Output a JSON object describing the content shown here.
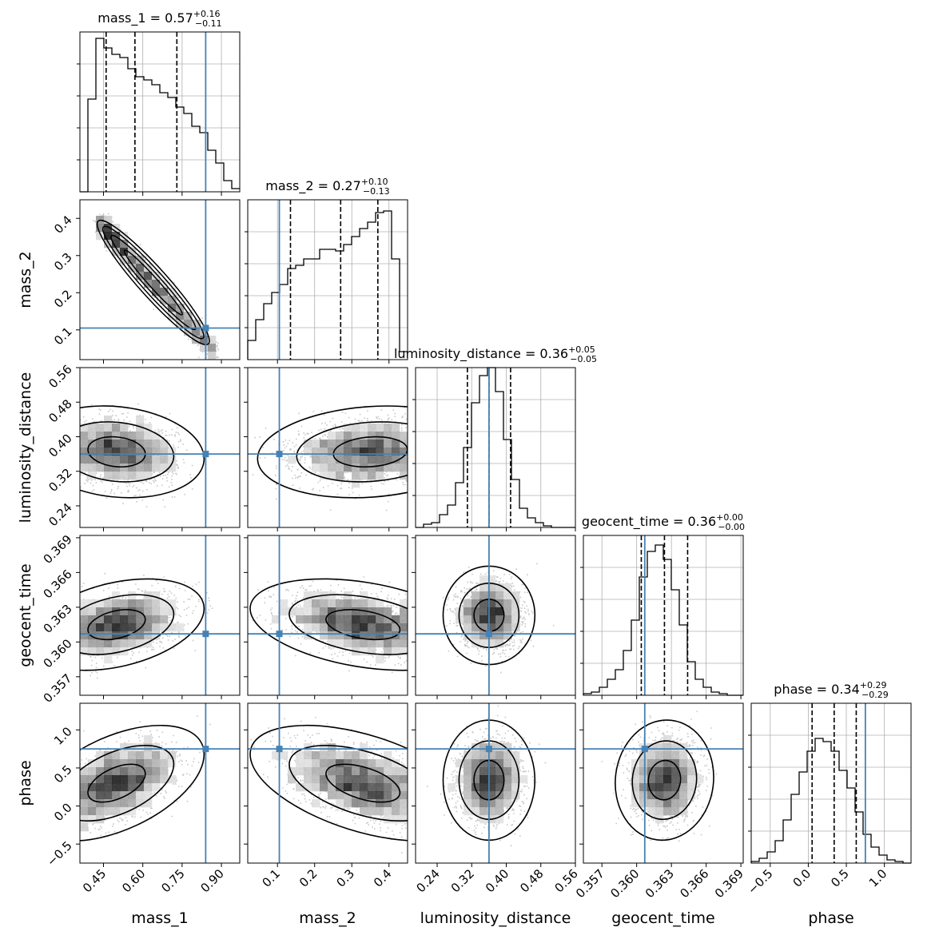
{
  "chart_data": {
    "type": "corner",
    "parameters": [
      {
        "name": "mass_1",
        "label": "mass_1",
        "range": [
          0.36,
          0.97
        ],
        "ticks": [
          0.45,
          0.6,
          0.75,
          0.9
        ],
        "tick_labels": [
          "0.45",
          "0.60",
          "0.75",
          "0.90"
        ],
        "truth": 0.84,
        "title": {
          "text": "mass_1 = 0.57",
          "plus": "+0.16",
          "minus": "−0.11"
        },
        "quantiles": [
          0.46,
          0.57,
          0.73
        ],
        "hist": {
          "bin_start": 0.36,
          "bin_width": 0.0305,
          "heights": [
            0,
            0.58,
            0.96,
            0.9,
            0.86,
            0.84,
            0.77,
            0.72,
            0.7,
            0.67,
            0.62,
            0.59,
            0.53,
            0.49,
            0.41,
            0.37,
            0.26,
            0.18,
            0.07,
            0.02
          ]
        }
      },
      {
        "name": "mass_2",
        "label": "mass_2",
        "range": [
          0.02,
          0.45
        ],
        "ticks": [
          0.1,
          0.2,
          0.3,
          0.4
        ],
        "tick_labels": [
          "0.1",
          "0.2",
          "0.3",
          "0.4"
        ],
        "truth": 0.105,
        "title": {
          "text": "mass_2 = 0.27",
          "plus": "+0.10",
          "minus": "−0.13"
        },
        "quantiles": [
          0.135,
          0.27,
          0.37
        ],
        "hist": {
          "bin_start": 0.02,
          "bin_width": 0.0215,
          "heights": [
            0.12,
            0.25,
            0.35,
            0.42,
            0.47,
            0.57,
            0.59,
            0.63,
            0.63,
            0.69,
            0.69,
            0.68,
            0.72,
            0.77,
            0.82,
            0.86,
            0.92,
            0.93,
            0.63,
            0.05
          ]
        }
      },
      {
        "name": "luminosity_distance",
        "label": "luminosity_distance",
        "range": [
          0.19,
          0.56
        ],
        "ticks": [
          0.24,
          0.32,
          0.4,
          0.48,
          0.56
        ],
        "tick_labels": [
          "0.24",
          "0.32",
          "0.40",
          "0.48",
          "0.56"
        ],
        "truth": 0.36,
        "title": {
          "text": "luminosity_distance = 0.36",
          "plus": "+0.05",
          "minus": "−0.05"
        },
        "quantiles": [
          0.31,
          0.36,
          0.41
        ],
        "hist": {
          "bin_start": 0.19,
          "bin_width": 0.0185,
          "heights": [
            0,
            0.02,
            0.03,
            0.08,
            0.14,
            0.28,
            0.5,
            0.78,
            0.95,
            1.0,
            0.85,
            0.55,
            0.3,
            0.12,
            0.06,
            0.03,
            0.01,
            0,
            0,
            0
          ]
        }
      },
      {
        "name": "geocent_time",
        "label": "geocent_time",
        "range": [
          0.3554,
          0.3692
        ],
        "ticks": [
          0.357,
          0.36,
          0.363,
          0.366,
          0.369
        ],
        "tick_labels": [
          "0.357",
          "0.360",
          "0.363",
          "0.366",
          "0.369"
        ],
        "truth": 0.3607,
        "title": {
          "text": "geocent_time = 0.36",
          "plus": "+0.00",
          "minus": "−0.00"
        },
        "quantiles": [
          0.3604,
          0.3624,
          0.3644
        ],
        "hist": {
          "bin_start": 0.3554,
          "bin_width": 0.00069,
          "heights": [
            0.01,
            0.02,
            0.05,
            0.1,
            0.16,
            0.28,
            0.47,
            0.74,
            0.9,
            0.94,
            0.85,
            0.66,
            0.44,
            0.21,
            0.1,
            0.05,
            0.02,
            0.01,
            0,
            0
          ]
        }
      },
      {
        "name": "phase",
        "label": "phase",
        "range": [
          -0.75,
          1.35
        ],
        "ticks": [
          -0.5,
          0.0,
          0.5,
          1.0
        ],
        "tick_labels": [
          "−0.5",
          "0.0",
          "0.5",
          "1.0"
        ],
        "truth": 0.75,
        "title": {
          "text": "phase = 0.34",
          "plus": "+0.29",
          "minus": "−0.29"
        },
        "quantiles": [
          0.05,
          0.34,
          0.63
        ],
        "hist": {
          "bin_start": -0.75,
          "bin_width": 0.105,
          "heights": [
            0.01,
            0.03,
            0.07,
            0.14,
            0.27,
            0.43,
            0.57,
            0.7,
            0.78,
            0.76,
            0.7,
            0.58,
            0.47,
            0.32,
            0.18,
            0.1,
            0.05,
            0.02,
            0.01,
            0
          ]
        }
      }
    ],
    "pairs": [
      {
        "x": "mass_1",
        "y": "mass_2",
        "center": [
          0.44,
          0.385
        ],
        "trend": "linear-negative",
        "end": [
          0.87,
          0.04
        ],
        "width": 0.012
      },
      {
        "x": "mass_1",
        "y": "luminosity_distance",
        "center": [
          0.5,
          0.365
        ],
        "sx": 0.11,
        "sy": 0.035,
        "rho": -0.15
      },
      {
        "x": "mass_1",
        "y": "geocent_time",
        "center": [
          0.5,
          0.3615
        ],
        "sx": 0.11,
        "sy": 0.0013,
        "rho": 0.35
      },
      {
        "x": "mass_1",
        "y": "phase",
        "center": [
          0.5,
          0.3
        ],
        "sx": 0.11,
        "sy": 0.25,
        "rho": 0.5
      },
      {
        "x": "mass_2",
        "y": "luminosity_distance",
        "center": [
          0.35,
          0.365
        ],
        "sx": 0.1,
        "sy": 0.035,
        "rho": 0.15
      },
      {
        "x": "mass_2",
        "y": "geocent_time",
        "center": [
          0.33,
          0.3615
        ],
        "sx": 0.1,
        "sy": 0.0013,
        "rho": -0.35
      },
      {
        "x": "mass_2",
        "y": "phase",
        "center": [
          0.33,
          0.3
        ],
        "sx": 0.1,
        "sy": 0.25,
        "rho": -0.5
      },
      {
        "x": "luminosity_distance",
        "y": "geocent_time",
        "center": [
          0.36,
          0.3623
        ],
        "sx": 0.035,
        "sy": 0.0014,
        "rho": 0
      },
      {
        "x": "luminosity_distance",
        "y": "phase",
        "center": [
          0.36,
          0.34
        ],
        "sx": 0.035,
        "sy": 0.26,
        "rho": 0
      },
      {
        "x": "geocent_time",
        "y": "phase",
        "center": [
          0.3624,
          0.34
        ],
        "sx": 0.0014,
        "sy": 0.26,
        "rho": 0.05
      }
    ],
    "contour_levels": [
      0.39,
      0.86,
      0.99
    ],
    "truth_color": "#4682b4",
    "grid": true
  }
}
